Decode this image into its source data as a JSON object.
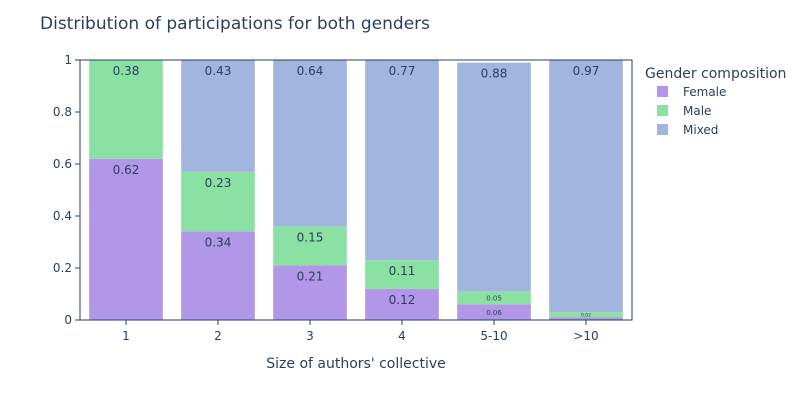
{
  "chart_data": {
    "type": "bar",
    "stacked": true,
    "title": "Distribution of participations for both genders",
    "xlabel": "Size of authors' collective",
    "ylabel": "",
    "ylim": [
      0,
      1
    ],
    "y_ticks": [
      "0",
      "0.2",
      "0.4",
      "0.6",
      "0.8",
      "1"
    ],
    "categories": [
      "1",
      "2",
      "3",
      "4",
      "5-10",
      ">10"
    ],
    "legend": {
      "title": "Gender composition",
      "position": "right"
    },
    "series": [
      {
        "name": "Female",
        "color": "#b296e8",
        "values": [
          0.62,
          0.34,
          0.21,
          0.12,
          0.06,
          0.01
        ],
        "labels": [
          "0.62",
          "0.34",
          "0.21",
          "0.12",
          "0.06",
          ""
        ]
      },
      {
        "name": "Male",
        "color": "#8be0a4",
        "values": [
          0.38,
          0.23,
          0.15,
          0.11,
          0.05,
          0.02
        ],
        "labels": [
          "0.38",
          "0.23",
          "0.15",
          "0.11",
          "0.05",
          "0.02"
        ]
      },
      {
        "name": "Mixed",
        "color": "#a2b5df",
        "values": [
          0,
          0.43,
          0.64,
          0.77,
          0.88,
          0.97
        ],
        "labels": [
          "",
          "0.43",
          "0.64",
          "0.77",
          "0.88",
          "0.97"
        ]
      }
    ]
  }
}
